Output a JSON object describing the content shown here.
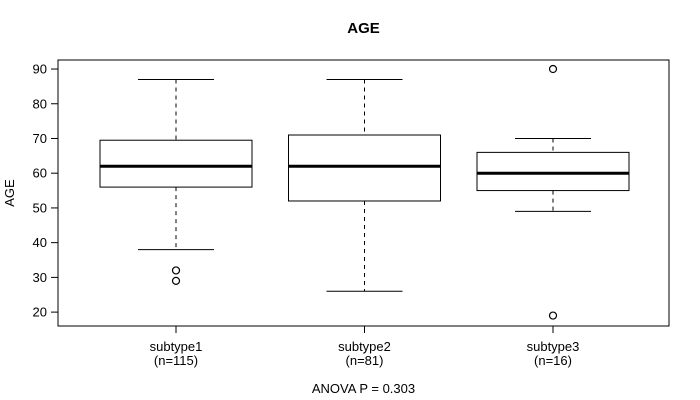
{
  "chart_data": {
    "type": "box",
    "title": "AGE",
    "ylabel": "AGE",
    "footer": "ANOVA P = 0.303",
    "y_ticks": [
      20,
      30,
      40,
      50,
      60,
      70,
      80,
      90
    ],
    "ylim": [
      16,
      92.6
    ],
    "categories": [
      "subtype1",
      "subtype2",
      "subtype3"
    ],
    "category_sublabels": [
      "(n=115)",
      "(n=81)",
      "(n=16)"
    ],
    "series": [
      {
        "name": "subtype1",
        "n": 115,
        "whisker_low": 38,
        "q1": 56,
        "median": 62,
        "q3": 69.5,
        "whisker_high": 87,
        "outliers": [
          32,
          29
        ]
      },
      {
        "name": "subtype2",
        "n": 81,
        "whisker_low": 26,
        "q1": 52,
        "median": 62,
        "q3": 71,
        "whisker_high": 87,
        "outliers": []
      },
      {
        "name": "subtype3",
        "n": 16,
        "whisker_low": 49,
        "q1": 55,
        "median": 60,
        "q3": 66,
        "whisker_high": 70,
        "outliers": [
          90,
          19
        ]
      }
    ],
    "legend": null,
    "grid": false,
    "colors": {
      "line": "#000000",
      "box_fill": "#ffffff",
      "background": "#ffffff"
    }
  }
}
